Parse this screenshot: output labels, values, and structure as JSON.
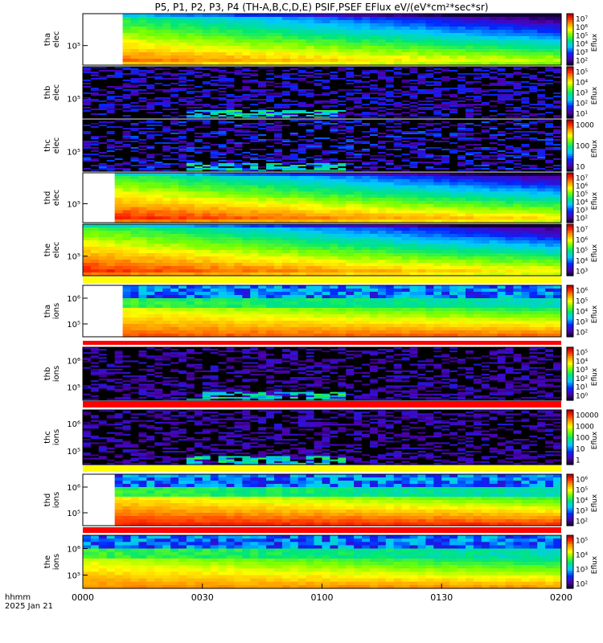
{
  "title": "P5, P1, P2, P3, P4 (TH-A,B,C,D,E) PSIF,PSEF EFlux eV/(eV*cm²*sec*sr)",
  "time_axis": {
    "label_line1": "hhmm",
    "label_line2": "2025 Jan 21",
    "ticks": [
      "0000",
      "0030",
      "0100",
      "0130",
      "0200"
    ]
  },
  "colors": {
    "background": "#ffffff",
    "nodata": "#ffffff",
    "indicator_yellow": "#ffff00",
    "indicator_red": "#ff0000",
    "fill_black": "#000000"
  },
  "chart_data": [
    {
      "type": "heatmap",
      "probe": "tha",
      "species": "elec",
      "ylabel": [
        "tha",
        "elec"
      ],
      "yticks": [
        "10⁵"
      ],
      "colorbar_label": "Eflux",
      "colorbar_ticks": [
        "10⁷",
        "10⁶",
        "10⁵",
        "10⁴",
        "10³",
        "10²"
      ],
      "pattern": "elec",
      "intensity": 0.92,
      "gap_fraction": 0.087
    },
    {
      "type": "heatmap",
      "probe": "thb",
      "species": "elec",
      "ylabel": [
        "thb",
        "elec"
      ],
      "yticks": [
        "10⁵"
      ],
      "colorbar_label": "Eflux",
      "colorbar_ticks": [
        "10⁵",
        "10⁴",
        "10³",
        "10²",
        "10¹"
      ],
      "pattern": "noise",
      "intensity": 0.18,
      "gap_fraction": 0
    },
    {
      "type": "heatmap",
      "probe": "thc",
      "species": "elec",
      "ylabel": [
        "thc",
        "elec"
      ],
      "yticks": [
        "10⁵"
      ],
      "colorbar_label": "Eflux",
      "colorbar_ticks": [
        "1000",
        "100",
        "10"
      ],
      "pattern": "noise",
      "intensity": 0.22,
      "gap_fraction": 0
    },
    {
      "type": "heatmap",
      "probe": "thd",
      "species": "elec",
      "ylabel": [
        "thd",
        "elec"
      ],
      "yticks": [
        "10⁵"
      ],
      "colorbar_label": "Eflux",
      "colorbar_ticks": [
        "10⁷",
        "10⁶",
        "10⁵",
        "10⁴",
        "10³",
        "10²"
      ],
      "pattern": "elec",
      "intensity": 1.0,
      "gap_fraction": 0.065
    },
    {
      "type": "heatmap",
      "probe": "the",
      "species": "elec",
      "ylabel": [
        "the",
        "elec"
      ],
      "yticks": [
        "10⁵"
      ],
      "colorbar_label": "Eflux",
      "colorbar_ticks": [
        "10⁷",
        "10⁶",
        "10⁵",
        "10⁴",
        "10³"
      ],
      "pattern": "elec",
      "intensity": 0.98,
      "gap_fraction": 0
    },
    {
      "type": "heatmap",
      "probe": "tha",
      "species": "ions",
      "ylabel": [
        "tha",
        "ions"
      ],
      "yticks": [
        "10⁶",
        "10⁵"
      ],
      "colorbar_label": "Eflux",
      "colorbar_ticks": [
        "10⁶",
        "10⁵",
        "10⁴",
        "10³",
        "10²"
      ],
      "pattern": "ions",
      "intensity": 0.9,
      "gap_fraction": 0.087
    },
    {
      "type": "heatmap",
      "probe": "thb",
      "species": "ions",
      "ylabel": [
        "thb",
        "ions"
      ],
      "yticks": [
        "10⁶",
        "10⁵"
      ],
      "colorbar_label": "Eflux",
      "colorbar_ticks": [
        "10⁵",
        "10⁴",
        "10³",
        "10²",
        "10¹",
        "10⁰"
      ],
      "pattern": "noise",
      "intensity": 0.12,
      "gap_fraction": 0
    },
    {
      "type": "heatmap",
      "probe": "thc",
      "species": "ions",
      "ylabel": [
        "thc",
        "ions"
      ],
      "yticks": [
        "10⁶",
        "10⁵"
      ],
      "colorbar_label": "Eflux",
      "colorbar_ticks": [
        "10000",
        "1000",
        "100",
        "10",
        "1"
      ],
      "pattern": "noise",
      "intensity": 0.12,
      "gap_fraction": 0
    },
    {
      "type": "heatmap",
      "probe": "thd",
      "species": "ions",
      "ylabel": [
        "thd",
        "ions"
      ],
      "yticks": [
        "10⁶",
        "10⁵"
      ],
      "colorbar_label": "Eflux",
      "colorbar_ticks": [
        "10⁶",
        "10⁵",
        "10⁴",
        "10³",
        "10²"
      ],
      "pattern": "ions",
      "intensity": 0.95,
      "gap_fraction": 0.065
    },
    {
      "type": "heatmap",
      "probe": "the",
      "species": "ions",
      "ylabel": [
        "the",
        "ions"
      ],
      "yticks": [
        "10⁶",
        "10⁵"
      ],
      "colorbar_label": "Eflux",
      "colorbar_ticks": [
        "10⁵",
        "10⁴",
        "10³",
        "10²"
      ],
      "pattern": "ions",
      "intensity": 0.85,
      "gap_fraction": 0
    }
  ]
}
